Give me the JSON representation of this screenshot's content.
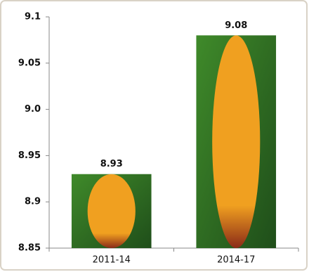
{
  "chart_data": {
    "type": "bar",
    "categories": [
      "2011-14",
      "2014-17"
    ],
    "values": [
      8.93,
      9.08
    ],
    "color": "#f0a020",
    "ylim": [
      8.85,
      9.1
    ],
    "yticks": [
      8.85,
      8.9,
      8.95,
      {
        "value": 9,
        "label": "9.0"
      },
      9.05,
      9.1
    ]
  }
}
